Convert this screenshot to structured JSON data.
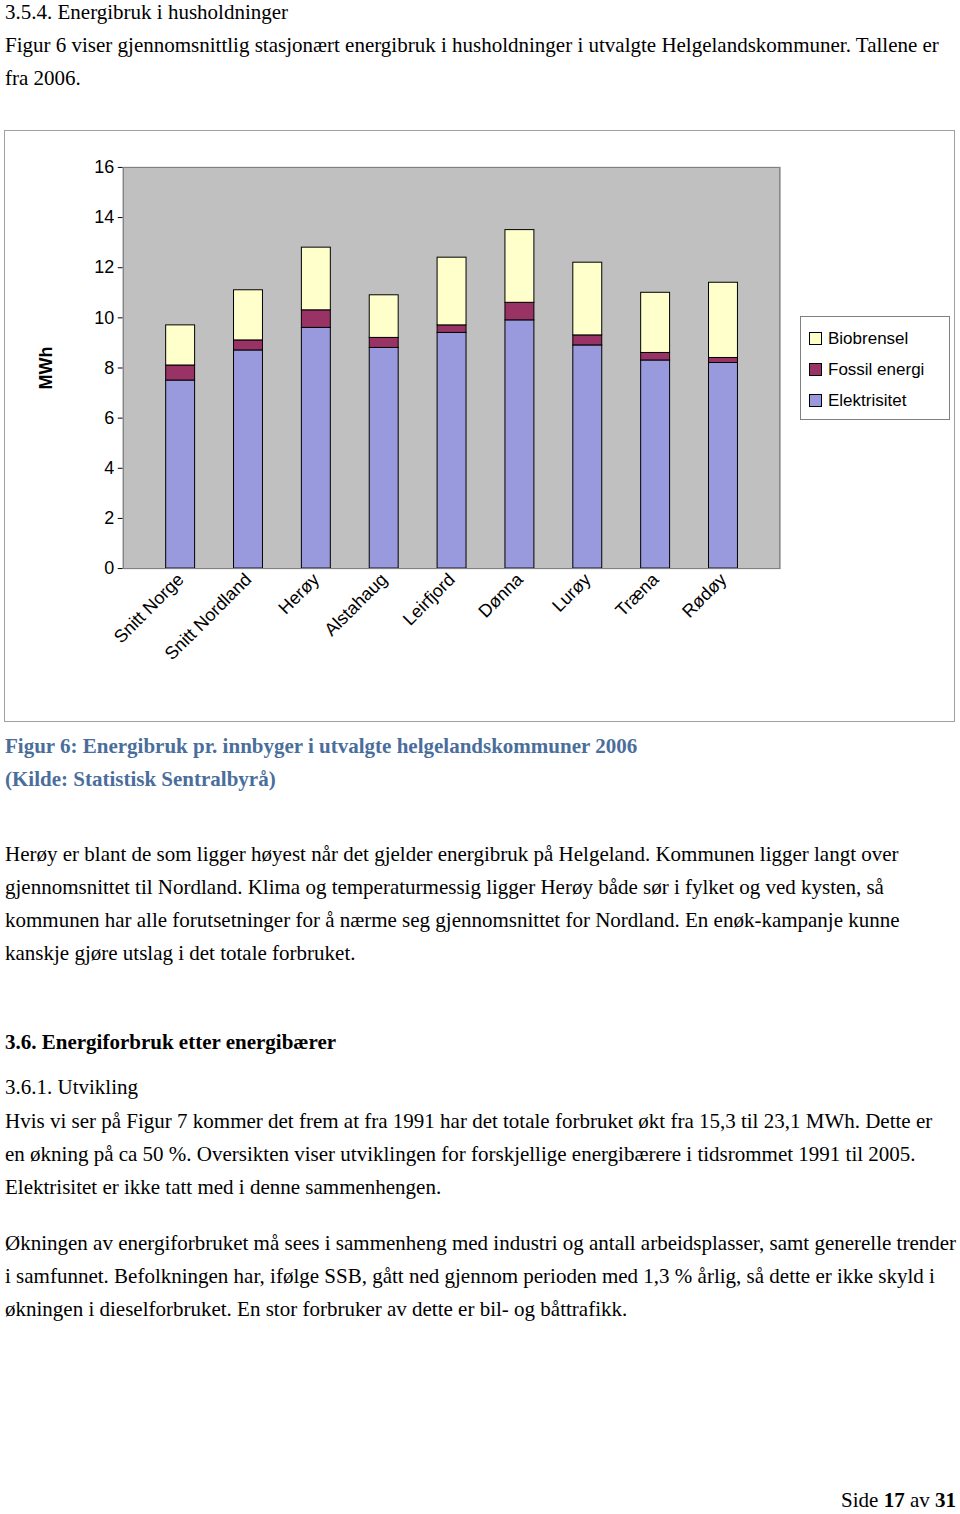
{
  "document": {
    "section_heading": "3.5.4. Energibruk i husholdninger",
    "intro": "Figur 6 viser gjennomsnittlig stasjonært energibruk i husholdninger i utvalgte Helgelandskommuner. Tallene er fra 2006.",
    "caption": [
      "Figur 6: Energibruk pr. innbyger i utvalgte helgelandskommuner 2006",
      "(Kilde: Statistisk Sentralbyrå)"
    ],
    "paragraph_1": "Herøy er blant de som ligger høyest når det gjelder energibruk på Helgeland. Kommunen ligger langt over gjennomsnittet til Nordland. Klima og temperaturmessig ligger Herøy både sør i fylket og ved kysten, så kommunen har alle forutsetninger for å nærme seg gjennomsnittet for Nordland. En enøk-kampanje kunne kanskje gjøre utslag i det totale forbruket.",
    "heading_2": "3.6. Energiforbruk etter energibærer",
    "heading_3": "3.6.1. Utvikling",
    "paragraph_2": "Hvis vi ser på Figur 7 kommer det frem at fra 1991 har det totale forbruket økt fra 15,3 til 23,1 MWh. Dette er en økning på ca 50 %. Oversikten viser utviklingen for forskjellige energibærere i tidsrommet 1991 til 2005. Elektrisitet er ikke tatt med i denne sammenhengen.",
    "paragraph_3": "Økningen av energiforbruket må sees i sammenheng med industri og antall arbeidsplasser, samt generelle trender i samfunnet. Befolkningen har, ifølge SSB, gått ned gjennom perioden med 1,3 % årlig, så dette er ikke skyld i økningen i dieselforbruket. En stor forbruker av dette er bil- og båttrafikk.",
    "footer": [
      "Side",
      "17",
      "av",
      "31"
    ]
  },
  "chart_data": {
    "type": "bar",
    "stacked": true,
    "y_label": "MWh",
    "categories": [
      "Snitt Norge",
      "Snitt Nordland",
      "Herøy",
      "Alstahaug",
      "Leirfjord",
      "Dønna",
      "Lurøy",
      "Træna",
      "Rødøy"
    ],
    "series": [
      {
        "name": "Elektrisitet",
        "color": "#9999dd",
        "values": [
          7.5,
          8.7,
          9.6,
          8.8,
          9.4,
          9.9,
          8.9,
          8.3,
          8.2
        ]
      },
      {
        "name": "Fossil energi",
        "color": "#993366",
        "values": [
          0.6,
          0.4,
          0.7,
          0.4,
          0.3,
          0.7,
          0.4,
          0.3,
          0.2
        ]
      },
      {
        "name": "Biobrensel",
        "color": "#ffffcc",
        "values": [
          1.6,
          2.0,
          2.5,
          1.7,
          2.7,
          2.9,
          2.9,
          2.4,
          3.0
        ]
      }
    ],
    "ylim": [
      0,
      16
    ],
    "yticks": [
      0,
      2,
      4,
      6,
      8,
      10,
      12,
      14,
      16
    ],
    "grid": false,
    "legend": "right"
  }
}
